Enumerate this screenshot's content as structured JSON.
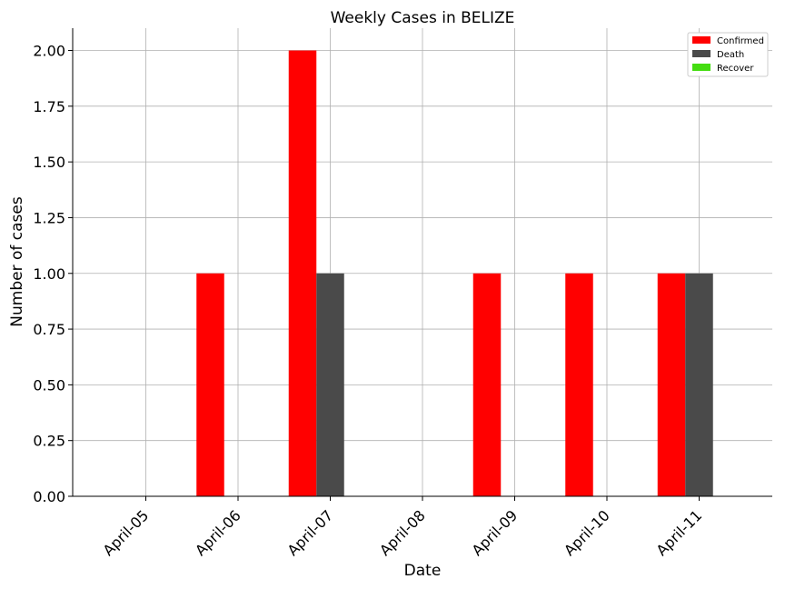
{
  "chart_data": {
    "type": "bar",
    "title": "Weekly Cases in BELIZE",
    "xlabel": "Date",
    "ylabel": "Number of cases",
    "categories": [
      "April-05",
      "April-06",
      "April-07",
      "April-08",
      "April-09",
      "April-10",
      "April-11"
    ],
    "series": [
      {
        "name": "Confirmed",
        "color": "#ff0000",
        "values": [
          0,
          1,
          2,
          0,
          1,
          1,
          1
        ]
      },
      {
        "name": "Death",
        "color": "#4a4a4a",
        "values": [
          0,
          0,
          1,
          0,
          0,
          0,
          1
        ]
      },
      {
        "name": "Recover",
        "color": "#44dd11",
        "values": [
          0,
          0,
          0,
          0,
          0,
          0,
          0
        ]
      }
    ],
    "ylim": [
      0,
      2.1
    ],
    "yticks": [
      0.0,
      0.25,
      0.5,
      0.75,
      1.0,
      1.25,
      1.5,
      1.75,
      2.0
    ],
    "ytick_labels": [
      "0.00",
      "0.25",
      "0.50",
      "0.75",
      "1.00",
      "1.25",
      "1.50",
      "1.75",
      "2.00"
    ],
    "grid": true,
    "legend_position": "top-right"
  }
}
